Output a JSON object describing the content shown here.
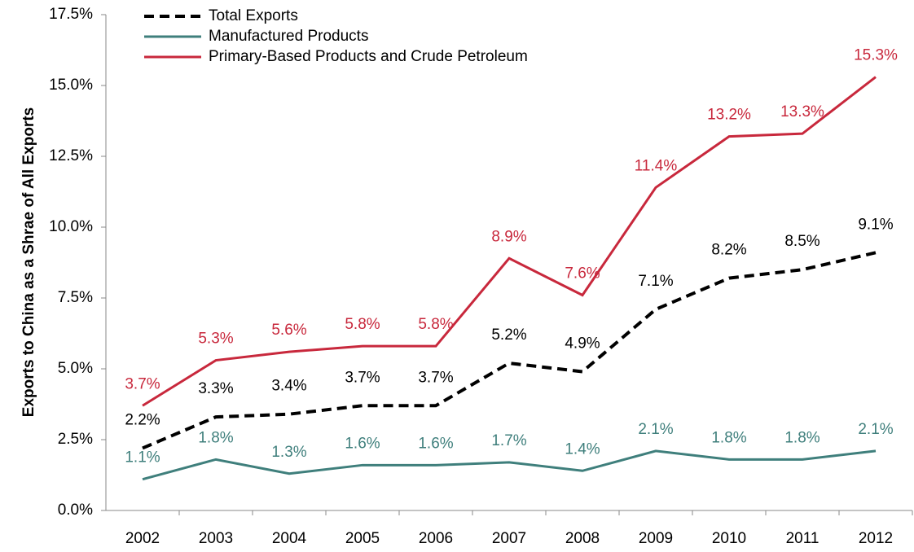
{
  "chart_data": {
    "type": "line",
    "y_label": "Exports to China as a Shrae of All Exports",
    "categories": [
      "2002",
      "2003",
      "2004",
      "2005",
      "2006",
      "2007",
      "2008",
      "2009",
      "2010",
      "2011",
      "2012"
    ],
    "series": [
      {
        "name": "Total Exports",
        "color": "#000000",
        "dash": true,
        "values": [
          2.2,
          3.3,
          3.4,
          3.7,
          3.7,
          5.2,
          4.9,
          7.1,
          8.2,
          8.5,
          9.1
        ],
        "value_labels": [
          "2.2%",
          "3.3%",
          "3.4%",
          "3.7%",
          "3.7%",
          "5.2%",
          "4.9%",
          "7.1%",
          "8.2%",
          "8.5%",
          "9.1%"
        ]
      },
      {
        "name": "Manufactured Products",
        "color": "#3f7f7c",
        "values": [
          1.1,
          1.8,
          1.3,
          1.6,
          1.6,
          1.7,
          1.4,
          2.1,
          1.8,
          1.8,
          2.1
        ],
        "value_labels": [
          "1.1%",
          "1.8%",
          "1.3%",
          "1.6%",
          "1.6%",
          "1.7%",
          "1.4%",
          "2.1%",
          "1.8%",
          "1.8%",
          "2.1%"
        ]
      },
      {
        "name": "Primary-Based Products and Crude Petroleum",
        "color": "#c8283c",
        "values": [
          3.7,
          5.3,
          5.6,
          5.8,
          5.8,
          8.9,
          7.6,
          11.4,
          13.2,
          13.3,
          15.3
        ],
        "value_labels": [
          "3.7%",
          "5.3%",
          "5.6%",
          "5.8%",
          "5.8%",
          "8.9%",
          "7.6%",
          "11.4%",
          "13.2%",
          "13.3%",
          "15.3%"
        ]
      }
    ],
    "ylim": [
      0,
      17.5
    ],
    "yticks": [
      {
        "value": 0,
        "label": "0.0%"
      },
      {
        "value": 2.5,
        "label": "2.5%"
      },
      {
        "value": 5,
        "label": "5.0%"
      },
      {
        "value": 7.5,
        "label": "7.5%"
      },
      {
        "value": 10,
        "label": "10.0%"
      },
      {
        "value": 12.5,
        "label": "12.5%"
      },
      {
        "value": 15,
        "label": "15.0%"
      },
      {
        "value": 17.5,
        "label": "17.5%"
      }
    ],
    "legend": "top-left"
  }
}
